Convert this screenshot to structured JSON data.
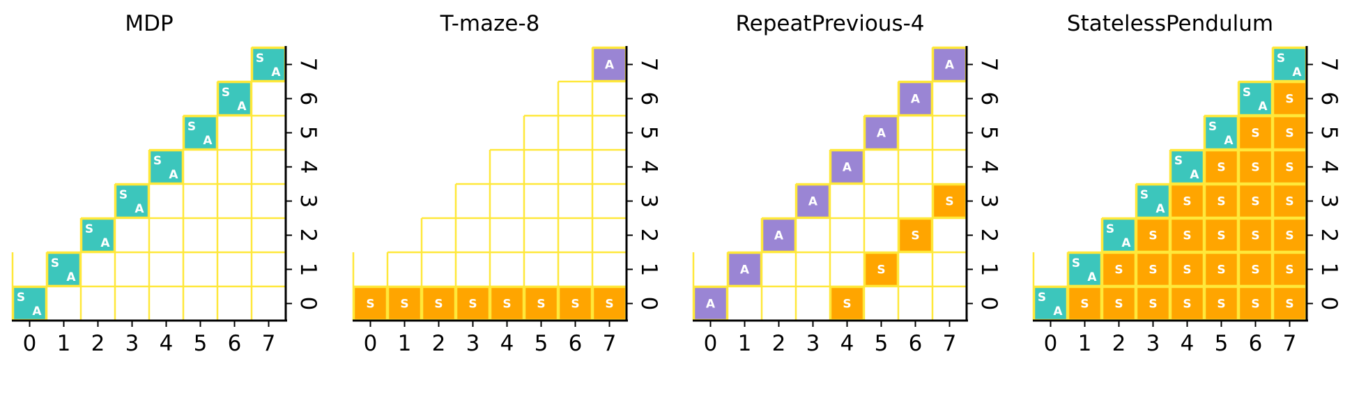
{
  "colors": {
    "teal": "#3CC6BC",
    "purple": "#9A85D4",
    "orange": "#FFA500",
    "grid": "#FFE83A",
    "axis": "#000000",
    "letter": "#ffffff"
  },
  "chart_data": [
    {
      "type": "heatmap",
      "title": "MDP",
      "x_ticks": [
        "0",
        "1",
        "2",
        "3",
        "4",
        "5",
        "6",
        "7"
      ],
      "y_ticks": [
        "0",
        "1",
        "2",
        "3",
        "4",
        "5",
        "6",
        "7"
      ],
      "cells": [
        {
          "x": 0,
          "y": 0,
          "label": "SA"
        },
        {
          "x": 1,
          "y": 1,
          "label": "SA"
        },
        {
          "x": 2,
          "y": 2,
          "label": "SA"
        },
        {
          "x": 3,
          "y": 3,
          "label": "SA"
        },
        {
          "x": 4,
          "y": 4,
          "label": "SA"
        },
        {
          "x": 5,
          "y": 5,
          "label": "SA"
        },
        {
          "x": 6,
          "y": 6,
          "label": "SA"
        },
        {
          "x": 7,
          "y": 7,
          "label": "SA"
        }
      ]
    },
    {
      "type": "heatmap",
      "title": "T-maze-8",
      "x_ticks": [
        "0",
        "1",
        "2",
        "3",
        "4",
        "5",
        "6",
        "7"
      ],
      "y_ticks": [
        "0",
        "1",
        "2",
        "3",
        "4",
        "5",
        "6",
        "7"
      ],
      "cells": [
        {
          "x": 0,
          "y": 0,
          "label": "S"
        },
        {
          "x": 1,
          "y": 0,
          "label": "S"
        },
        {
          "x": 2,
          "y": 0,
          "label": "S"
        },
        {
          "x": 3,
          "y": 0,
          "label": "S"
        },
        {
          "x": 4,
          "y": 0,
          "label": "S"
        },
        {
          "x": 5,
          "y": 0,
          "label": "S"
        },
        {
          "x": 6,
          "y": 0,
          "label": "S"
        },
        {
          "x": 7,
          "y": 0,
          "label": "S"
        },
        {
          "x": 7,
          "y": 7,
          "label": "A"
        }
      ]
    },
    {
      "type": "heatmap",
      "title": "RepeatPrevious-4",
      "x_ticks": [
        "0",
        "1",
        "2",
        "3",
        "4",
        "5",
        "6",
        "7"
      ],
      "y_ticks": [
        "0",
        "1",
        "2",
        "3",
        "4",
        "5",
        "6",
        "7"
      ],
      "cells": [
        {
          "x": 0,
          "y": 0,
          "label": "A"
        },
        {
          "x": 1,
          "y": 1,
          "label": "A"
        },
        {
          "x": 2,
          "y": 2,
          "label": "A"
        },
        {
          "x": 3,
          "y": 3,
          "label": "A"
        },
        {
          "x": 4,
          "y": 4,
          "label": "A"
        },
        {
          "x": 5,
          "y": 5,
          "label": "A"
        },
        {
          "x": 6,
          "y": 6,
          "label": "A"
        },
        {
          "x": 7,
          "y": 7,
          "label": "A"
        },
        {
          "x": 4,
          "y": 0,
          "label": "S"
        },
        {
          "x": 5,
          "y": 1,
          "label": "S"
        },
        {
          "x": 6,
          "y": 2,
          "label": "S"
        },
        {
          "x": 7,
          "y": 3,
          "label": "S"
        }
      ]
    },
    {
      "type": "heatmap",
      "title": "StatelessPendulum",
      "x_ticks": [
        "0",
        "1",
        "2",
        "3",
        "4",
        "5",
        "6",
        "7"
      ],
      "y_ticks": [
        "0",
        "1",
        "2",
        "3",
        "4",
        "5",
        "6",
        "7"
      ],
      "cells": [
        {
          "x": 0,
          "y": 0,
          "label": "SA"
        },
        {
          "x": 1,
          "y": 1,
          "label": "SA"
        },
        {
          "x": 2,
          "y": 2,
          "label": "SA"
        },
        {
          "x": 3,
          "y": 3,
          "label": "SA"
        },
        {
          "x": 4,
          "y": 4,
          "label": "SA"
        },
        {
          "x": 5,
          "y": 5,
          "label": "SA"
        },
        {
          "x": 6,
          "y": 6,
          "label": "SA"
        },
        {
          "x": 7,
          "y": 7,
          "label": "SA"
        },
        {
          "x": 1,
          "y": 0,
          "label": "S"
        },
        {
          "x": 2,
          "y": 0,
          "label": "S"
        },
        {
          "x": 3,
          "y": 0,
          "label": "S"
        },
        {
          "x": 4,
          "y": 0,
          "label": "S"
        },
        {
          "x": 5,
          "y": 0,
          "label": "S"
        },
        {
          "x": 6,
          "y": 0,
          "label": "S"
        },
        {
          "x": 7,
          "y": 0,
          "label": "S"
        },
        {
          "x": 2,
          "y": 1,
          "label": "S"
        },
        {
          "x": 3,
          "y": 1,
          "label": "S"
        },
        {
          "x": 4,
          "y": 1,
          "label": "S"
        },
        {
          "x": 5,
          "y": 1,
          "label": "S"
        },
        {
          "x": 6,
          "y": 1,
          "label": "S"
        },
        {
          "x": 7,
          "y": 1,
          "label": "S"
        },
        {
          "x": 3,
          "y": 2,
          "label": "S"
        },
        {
          "x": 4,
          "y": 2,
          "label": "S"
        },
        {
          "x": 5,
          "y": 2,
          "label": "S"
        },
        {
          "x": 6,
          "y": 2,
          "label": "S"
        },
        {
          "x": 7,
          "y": 2,
          "label": "S"
        },
        {
          "x": 4,
          "y": 3,
          "label": "S"
        },
        {
          "x": 5,
          "y": 3,
          "label": "S"
        },
        {
          "x": 6,
          "y": 3,
          "label": "S"
        },
        {
          "x": 7,
          "y": 3,
          "label": "S"
        },
        {
          "x": 5,
          "y": 4,
          "label": "S"
        },
        {
          "x": 6,
          "y": 4,
          "label": "S"
        },
        {
          "x": 7,
          "y": 4,
          "label": "S"
        },
        {
          "x": 6,
          "y": 5,
          "label": "S"
        },
        {
          "x": 7,
          "y": 5,
          "label": "S"
        },
        {
          "x": 7,
          "y": 6,
          "label": "S"
        }
      ]
    }
  ]
}
